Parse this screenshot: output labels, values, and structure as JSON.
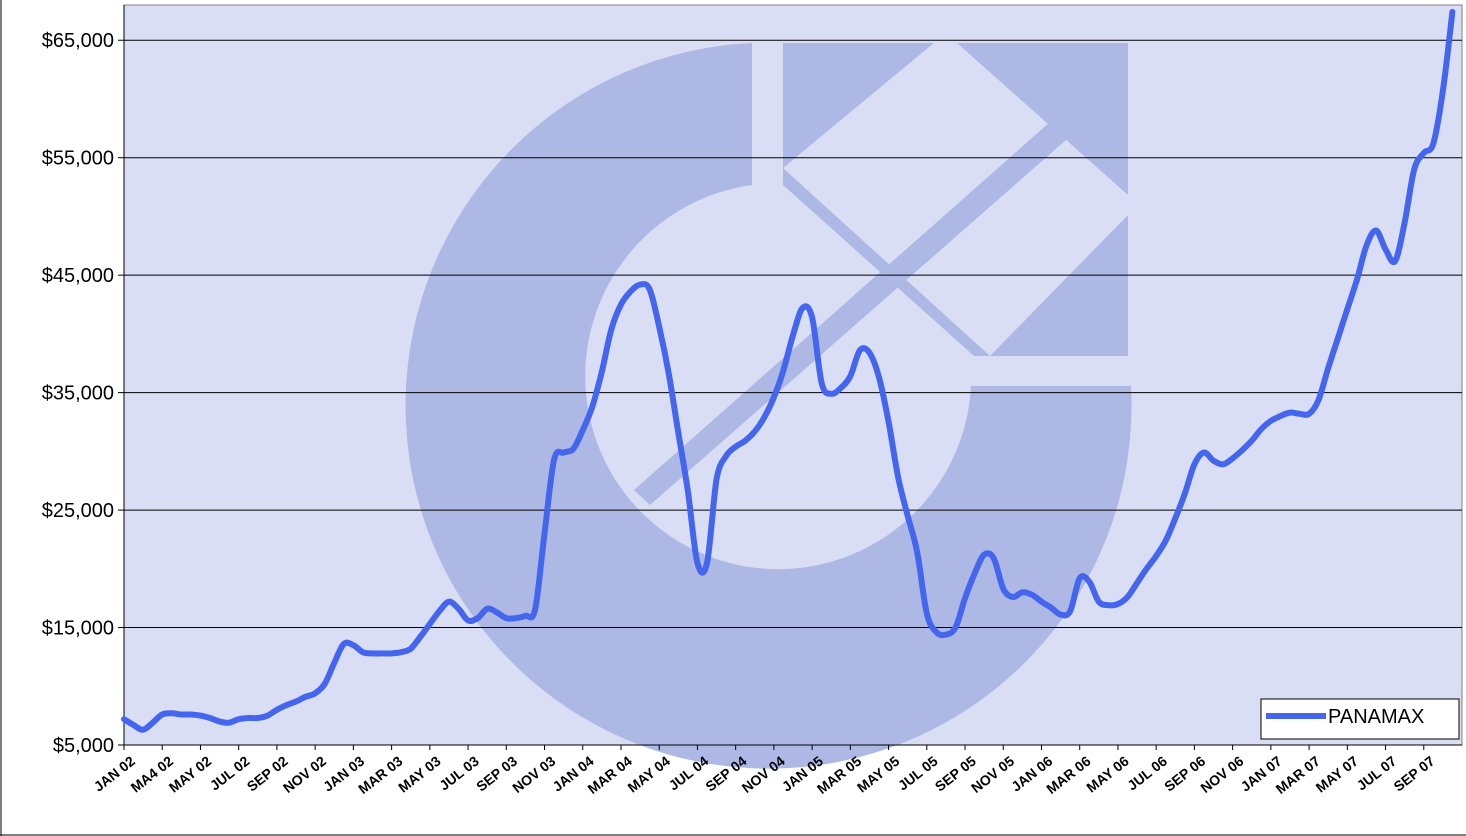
{
  "chart_data": {
    "type": "line",
    "title": "",
    "xlabel": "",
    "ylabel": "",
    "ylim": [
      5000,
      68000
    ],
    "y_ticks": [
      5000,
      15000,
      25000,
      35000,
      45000,
      55000,
      65000
    ],
    "y_tick_labels": [
      "$5,000",
      "$15,000",
      "$25,000",
      "$35,000",
      "$45,000",
      "$55,000",
      "$65,000"
    ],
    "grid": "horizontal",
    "legend_position": "bottom-right",
    "x_tick_labels": [
      "JAN 02",
      "MA4 02",
      "MAY 02",
      "JUL 02",
      "SEP 02",
      "NOV 02",
      "JAN 03",
      "MAR 03",
      "MAY 03",
      "JUL 03",
      "SEP 03",
      "NOV 03",
      "JAN 04",
      "MAR 04",
      "MAY 04",
      "JUL 04",
      "SEP 04",
      "NOV 04",
      "JAN 05",
      "MAR 05",
      "MAY 05",
      "JUL 05",
      "SEP 05",
      "NOV 05",
      "JAN 06",
      "MAR 06",
      "MAY 06",
      "JUL 06",
      "SEP 06",
      "NOV 06",
      "JAN 07",
      "MAR 07",
      "MAY 07",
      "JUL 07",
      "SEP 07"
    ],
    "plot_background": "#d9def5",
    "watermark_color": "#aeb8e5",
    "series": [
      {
        "name": "PANAMAX",
        "color": "#4466ee",
        "x": [
          0,
          0.5,
          1,
          1.5,
          2,
          2.5,
          3,
          3.5,
          4,
          4.5,
          5,
          5.5,
          6,
          6.5,
          7,
          7.5,
          8,
          8.5,
          9,
          9.5,
          10,
          10.5,
          11,
          11.5,
          12,
          12.5,
          13,
          13.5,
          14,
          14.5,
          15,
          15.5,
          16,
          16.5,
          17,
          17.5,
          18,
          18.5,
          19,
          19.5,
          20,
          20.5,
          21,
          21.5,
          22,
          22.5,
          23,
          23.5,
          24,
          24.5,
          25,
          25.5,
          26,
          26.5,
          27,
          27.5,
          28,
          28.5,
          29,
          29.5,
          30,
          30.5,
          31,
          31.5,
          32,
          32.5,
          33,
          33.5,
          34,
          34.5,
          35,
          35.5,
          36,
          36.5,
          37,
          37.5,
          38,
          38.5,
          39,
          39.5,
          40,
          40.5,
          41,
          41.5,
          42,
          42.5,
          43,
          43.5,
          44,
          44.5,
          45,
          45.5,
          46,
          46.5,
          47,
          47.5,
          48,
          48.5,
          49,
          49.5,
          50,
          50.5,
          51,
          51.5,
          52,
          52.5,
          53,
          53.5,
          54,
          54.5,
          55,
          55.5,
          56,
          56.5,
          57,
          57.5,
          58,
          58.5,
          59,
          59.5,
          60,
          60.5,
          61,
          61.5,
          62,
          62.5,
          63,
          63.5,
          64,
          64.5,
          65,
          65.5,
          66,
          66.5,
          67,
          67.5,
          68,
          68.5,
          69,
          69.5
        ],
        "values": [
          7200,
          6700,
          6300,
          6900,
          7600,
          7700,
          7600,
          7600,
          7500,
          7300,
          7000,
          6900,
          7200,
          7300,
          7300,
          7500,
          8000,
          8400,
          8700,
          9100,
          9400,
          10200,
          12000,
          13600,
          13500,
          12900,
          12800,
          12800,
          12800,
          12900,
          13200,
          14200,
          15300,
          16400,
          17200,
          16600,
          15600,
          15800,
          16600,
          16300,
          15800,
          15800,
          16000,
          16500,
          23000,
          29300,
          29900,
          30200,
          31800,
          33800,
          36800,
          40400,
          42500,
          43600,
          44200,
          43800,
          40600,
          36600,
          31600,
          26600,
          20500,
          20500,
          27600,
          29600,
          30400,
          30900,
          31700,
          32900,
          34600,
          36900,
          39900,
          42200,
          41400,
          35800,
          34900,
          35400,
          36400,
          38600,
          38400,
          36300,
          32500,
          27800,
          24500,
          21400,
          16200,
          14600,
          14400,
          15000,
          17500,
          19600,
          21200,
          20900,
          18300,
          17600,
          18000,
          17800,
          17200,
          16700,
          16100,
          16400,
          19200,
          18900,
          17200,
          16900,
          17000,
          17600,
          18800,
          20000,
          21100,
          22400,
          24300,
          26400,
          28900,
          29900,
          29200,
          28900,
          29400,
          30100,
          30900,
          31900,
          32600,
          33000,
          33300,
          33200,
          33200,
          34400,
          37100,
          39600,
          42100,
          44600,
          47500,
          48800,
          47200,
          46200,
          49500,
          54000,
          55400,
          56200,
          60700,
          67400
        ]
      }
    ]
  }
}
